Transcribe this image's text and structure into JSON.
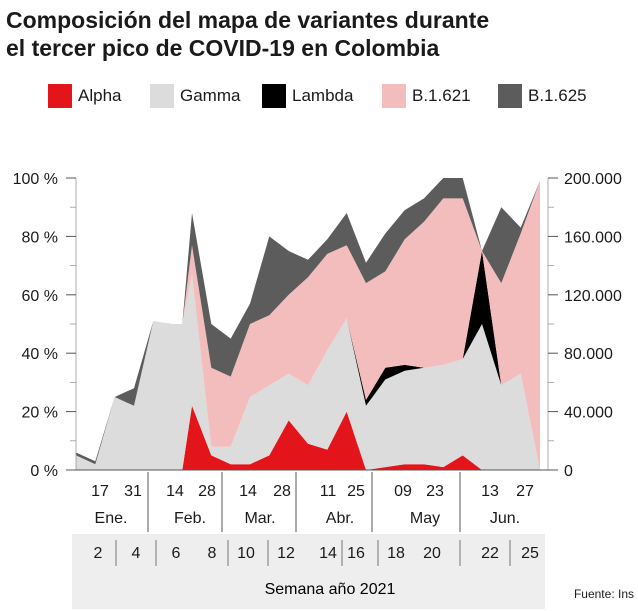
{
  "title_lines": [
    "Composición del mapa de variantes durante",
    "el tercer pico de COVID-19 en Colombia"
  ],
  "legend": [
    {
      "label": "Alpha",
      "color": "#e3151b"
    },
    {
      "label": "Gamma",
      "color": "#dcdcdc"
    },
    {
      "label": "Lambda",
      "color": "#000000"
    },
    {
      "label": "B.1.621",
      "color": "#f4bdbd"
    },
    {
      "label": "B.1.625",
      "color": "#5c5c5c"
    }
  ],
  "source": "Fuente: Ins",
  "chart_data": {
    "type": "area",
    "title": "Composición del mapa de variantes durante el tercer pico de COVID-19 en Colombia",
    "xlabel": "Semana año 2021",
    "y_left": {
      "ticks": [
        "0 %",
        "20 %",
        "40 %",
        "60 %",
        "80 %",
        "100 %"
      ],
      "range": [
        0,
        100
      ],
      "unit": "%"
    },
    "y_right": {
      "ticks": [
        "0",
        "40.000",
        "80.000",
        "120.000",
        "160.000",
        "200.000"
      ],
      "range": [
        0,
        200000
      ]
    },
    "x_date_ticks": [
      "17",
      "31",
      "14",
      "28",
      "14",
      "28",
      "11",
      "25",
      "09",
      "23",
      "13",
      "27"
    ],
    "months": [
      "Ene.",
      "Feb.",
      "Mar.",
      "Abr.",
      "May",
      "Jun."
    ],
    "week_ticks": [
      "2",
      "4",
      "6",
      "8",
      "10",
      "12",
      "14",
      "16",
      "18",
      "20",
      "22",
      "25"
    ],
    "series_order": [
      "Alpha",
      "Gamma",
      "Lambda",
      "B.1.621",
      "B.1.625"
    ],
    "colors": {
      "Alpha": "#e3151b",
      "Gamma": "#dcdcdc",
      "Lambda": "#000000",
      "B.1.621": "#f4bdbd",
      "B.1.625": "#5c5c5c"
    },
    "weeks": [
      {
        "week": 1,
        "Alpha": 0,
        "Gamma": 5,
        "Lambda": 0,
        "B.1.621": 0,
        "B.1.625": 1
      },
      {
        "week": 2,
        "Alpha": 0,
        "Gamma": 2,
        "Lambda": 0,
        "B.1.621": 0,
        "B.1.625": 1
      },
      {
        "week": 3,
        "Alpha": 0,
        "Gamma": 25,
        "Lambda": 0,
        "B.1.621": 0,
        "B.1.625": 0
      },
      {
        "week": 4,
        "Alpha": 0,
        "Gamma": 22,
        "Lambda": 0,
        "B.1.621": 0,
        "B.1.625": 6
      },
      {
        "week": 5,
        "Alpha": 0,
        "Gamma": 51,
        "Lambda": 0,
        "B.1.621": 0,
        "B.1.625": 0
      },
      {
        "week": 6,
        "Alpha": 0,
        "Gamma": 50,
        "Lambda": 0,
        "B.1.621": 0,
        "B.1.625": 0
      },
      {
        "week": 6.5,
        "Alpha": 0,
        "Gamma": 50,
        "Lambda": 0,
        "B.1.621": 0,
        "B.1.625": 0
      },
      {
        "week": 7,
        "Alpha": 22,
        "Gamma": 45,
        "Lambda": 0,
        "B.1.621": 10,
        "B.1.625": 11
      },
      {
        "week": 8,
        "Alpha": 5,
        "Gamma": 3,
        "Lambda": 0,
        "B.1.621": 27,
        "B.1.625": 15
      },
      {
        "week": 9,
        "Alpha": 2,
        "Gamma": 6,
        "Lambda": 0,
        "B.1.621": 24,
        "B.1.625": 13
      },
      {
        "week": 10,
        "Alpha": 2,
        "Gamma": 23,
        "Lambda": 0,
        "B.1.621": 25,
        "B.1.625": 7
      },
      {
        "week": 11,
        "Alpha": 5,
        "Gamma": 24,
        "Lambda": 0,
        "B.1.621": 24,
        "B.1.625": 27
      },
      {
        "week": 12,
        "Alpha": 17,
        "Gamma": 16,
        "Lambda": 0,
        "B.1.621": 27,
        "B.1.625": 15
      },
      {
        "week": 13,
        "Alpha": 9,
        "Gamma": 20,
        "Lambda": 0,
        "B.1.621": 37,
        "B.1.625": 6
      },
      {
        "week": 14,
        "Alpha": 7,
        "Gamma": 34,
        "Lambda": 0,
        "B.1.621": 33,
        "B.1.625": 5
      },
      {
        "week": 15,
        "Alpha": 20,
        "Gamma": 32,
        "Lambda": 0,
        "B.1.621": 25,
        "B.1.625": 11
      },
      {
        "week": 16,
        "Alpha": 0,
        "Gamma": 22,
        "Lambda": 2,
        "B.1.621": 40,
        "B.1.625": 7
      },
      {
        "week": 17,
        "Alpha": 1,
        "Gamma": 30,
        "Lambda": 4,
        "B.1.621": 33,
        "B.1.625": 13
      },
      {
        "week": 18,
        "Alpha": 2,
        "Gamma": 32,
        "Lambda": 2,
        "B.1.621": 43,
        "B.1.625": 10
      },
      {
        "week": 19,
        "Alpha": 2,
        "Gamma": 33,
        "Lambda": 0,
        "B.1.621": 50,
        "B.1.625": 8
      },
      {
        "week": 20,
        "Alpha": 1,
        "Gamma": 35,
        "Lambda": 0,
        "B.1.621": 57,
        "B.1.625": 7
      },
      {
        "week": 21,
        "Alpha": 5,
        "Gamma": 33,
        "Lambda": 0,
        "B.1.621": 55,
        "B.1.625": 7
      },
      {
        "week": 22,
        "Alpha": 0,
        "Gamma": 50,
        "Lambda": 25,
        "B.1.621": 0,
        "B.1.625": 0
      },
      {
        "week": 23,
        "Alpha": 0,
        "Gamma": 29,
        "Lambda": 0,
        "B.1.621": 35,
        "B.1.625": 26
      },
      {
        "week": 24,
        "Alpha": 0,
        "Gamma": 33,
        "Lambda": 0,
        "B.1.621": 48,
        "B.1.625": 2
      },
      {
        "week": 25,
        "Alpha": 0,
        "Gamma": 0,
        "Lambda": 0,
        "B.1.621": 99,
        "B.1.625": 0
      }
    ]
  }
}
